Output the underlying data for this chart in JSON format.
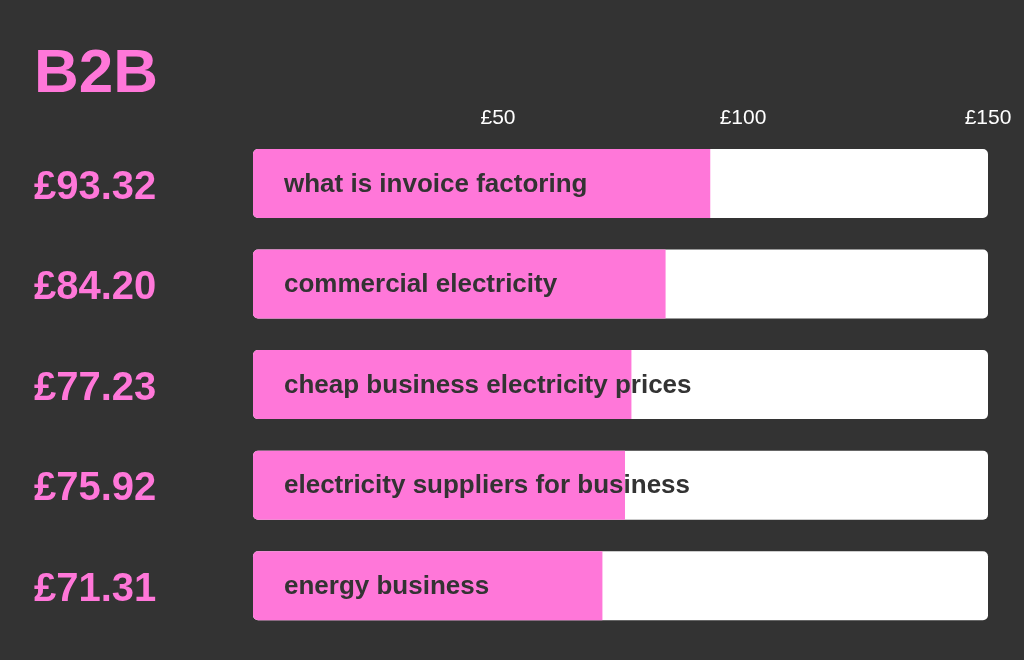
{
  "chart_data": {
    "type": "bar",
    "orientation": "horizontal",
    "title": "B2B",
    "categories": [
      "what is invoice factoring",
      "commercial electricity",
      "cheap business electricity prices",
      "electricity suppliers for business",
      "energy business"
    ],
    "values": [
      93.32,
      84.2,
      77.23,
      75.92,
      71.31
    ],
    "value_labels": [
      "£93.32",
      "£84.20",
      "£77.23",
      "£75.92",
      "£71.31"
    ],
    "color": "#ff77d9",
    "xlim": [
      0,
      150
    ],
    "xticks": [
      {
        "value": 50,
        "label": "£50"
      },
      {
        "value": 100,
        "label": "£100"
      },
      {
        "value": 150,
        "label": "£150"
      }
    ],
    "grid": false
  }
}
